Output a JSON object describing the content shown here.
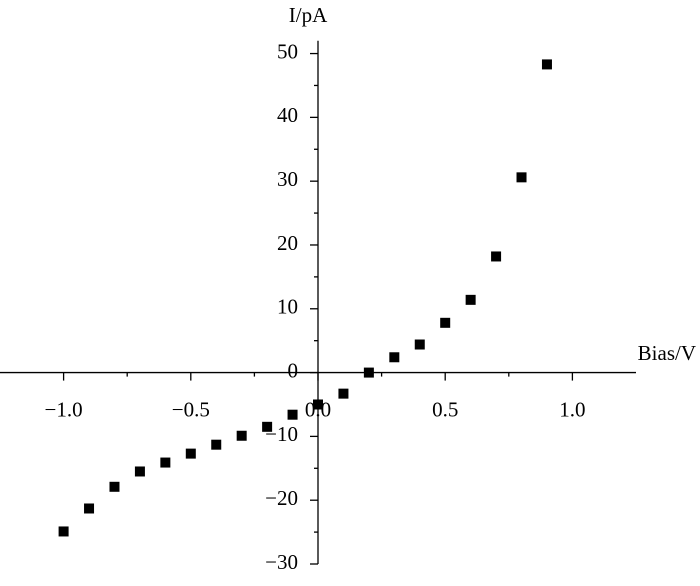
{
  "chart_data": {
    "type": "scatter",
    "x_label": "Bias/V",
    "y_label": "I/pA",
    "x": [
      -1.0,
      -0.9,
      -0.8,
      -0.7,
      -0.6,
      -0.5,
      -0.4,
      -0.3,
      -0.2,
      -0.1,
      0.0,
      0.1,
      0.2,
      0.3,
      0.4,
      0.5,
      0.6,
      0.7,
      0.8,
      0.9
    ],
    "series": [
      {
        "color": "#000000",
        "values": [
          -24.9,
          -21.3,
          -17.9,
          -15.5,
          -14.1,
          -12.7,
          -11.3,
          -9.9,
          -8.5,
          -6.6,
          -5.0,
          -3.3,
          0,
          2.4,
          4.4,
          7.8,
          11.4,
          18.2,
          30.6,
          48.3
        ]
      }
    ],
    "xlim": [
      -1.25,
      1.25
    ],
    "ylim": [
      -30,
      52
    ],
    "xticks": [
      {
        "value": -1.0,
        "label": "−1.0"
      },
      {
        "value": -0.5,
        "label": "−0.5"
      },
      {
        "value": 0.0,
        "label": "0.0"
      },
      0.5,
      {
        "value": 1.0,
        "label": "1.0"
      }
    ],
    "yticks": [
      {
        "value": -30,
        "label": "−30"
      },
      {
        "value": -20,
        "label": "−20"
      },
      {
        "value": -10,
        "label": "−10"
      },
      0,
      10,
      20,
      30,
      40,
      50
    ]
  }
}
